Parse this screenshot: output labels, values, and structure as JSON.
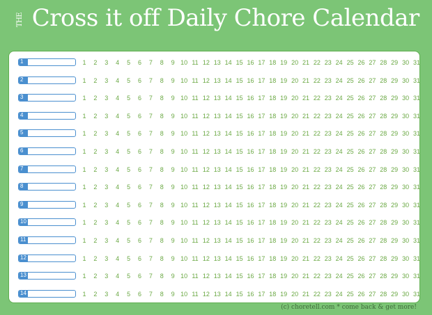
{
  "header": {
    "title_prefix": "THE",
    "title": "Cross it off Daily Chore Calendar"
  },
  "rows": [
    "1",
    "2",
    "3",
    "4",
    "5",
    "6",
    "7",
    "8",
    "9",
    "10",
    "11",
    "12",
    "13",
    "14"
  ],
  "days": [
    "1",
    "2",
    "3",
    "4",
    "5",
    "6",
    "7",
    "8",
    "9",
    "10",
    "11",
    "12",
    "13",
    "14",
    "15",
    "16",
    "17",
    "18",
    "19",
    "20",
    "21",
    "22",
    "23",
    "24",
    "25",
    "26",
    "27",
    "28",
    "29",
    "30",
    "31"
  ],
  "footer": "(c) choretell.com * come back & get more!",
  "colors": {
    "background": "#7cc576",
    "day_numbers": "#6aa843",
    "label_accent": "#4a8fcf"
  }
}
